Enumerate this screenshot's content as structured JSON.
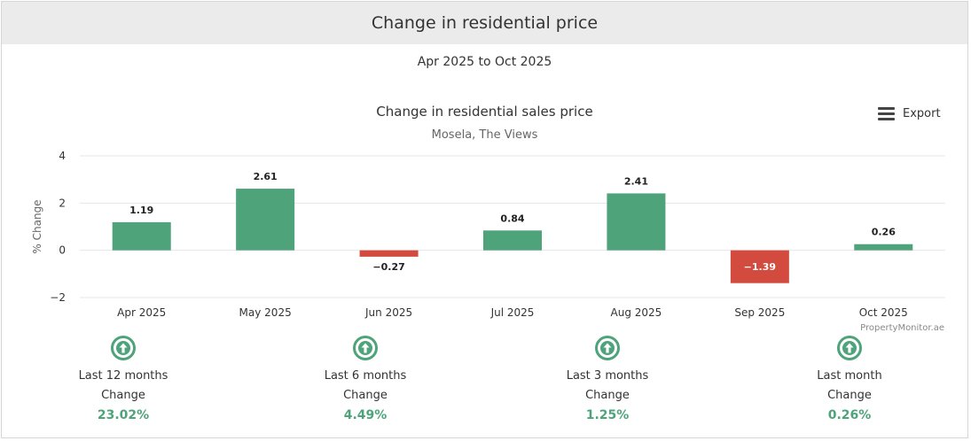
{
  "header": {
    "title": "Change in residential price"
  },
  "period": "Apr 2025 to Oct 2025",
  "export_label": "Export",
  "credit": "PropertyMonitor.ae",
  "colors": {
    "positive": "#4ea37a",
    "negative": "#d34b3e",
    "stat_value": "#4ea37a"
  },
  "chart_data": {
    "type": "bar",
    "title": "Change in residential sales price",
    "subtitle": "Mosela, The Views",
    "ylabel": "% Change",
    "xlabel": "",
    "categories": [
      "Apr 2025",
      "May 2025",
      "Jun 2025",
      "Jul 2025",
      "Aug 2025",
      "Sep 2025",
      "Oct 2025"
    ],
    "values": [
      1.19,
      2.61,
      -0.27,
      0.84,
      2.41,
      -1.39,
      0.26
    ],
    "data_labels": [
      "1.19",
      "2.61",
      "−0.27",
      "0.84",
      "2.41",
      "−1.39",
      "0.26"
    ],
    "ylim": [
      -2,
      4
    ],
    "yticks": [
      4,
      2,
      0,
      -2
    ],
    "ytick_labels": [
      "4",
      "2",
      "0",
      "−2"
    ],
    "grid": true,
    "legend": "none"
  },
  "stats": [
    {
      "icon": "up-arrow-circle-icon",
      "period": "Last 12 months",
      "label": "Change",
      "value": "23.02%"
    },
    {
      "icon": "up-arrow-circle-icon",
      "period": "Last 6 months",
      "label": "Change",
      "value": "4.49%"
    },
    {
      "icon": "up-arrow-circle-icon",
      "period": "Last 3 months",
      "label": "Change",
      "value": "1.25%"
    },
    {
      "icon": "up-arrow-circle-icon",
      "period": "Last month",
      "label": "Change",
      "value": "0.26%"
    }
  ]
}
